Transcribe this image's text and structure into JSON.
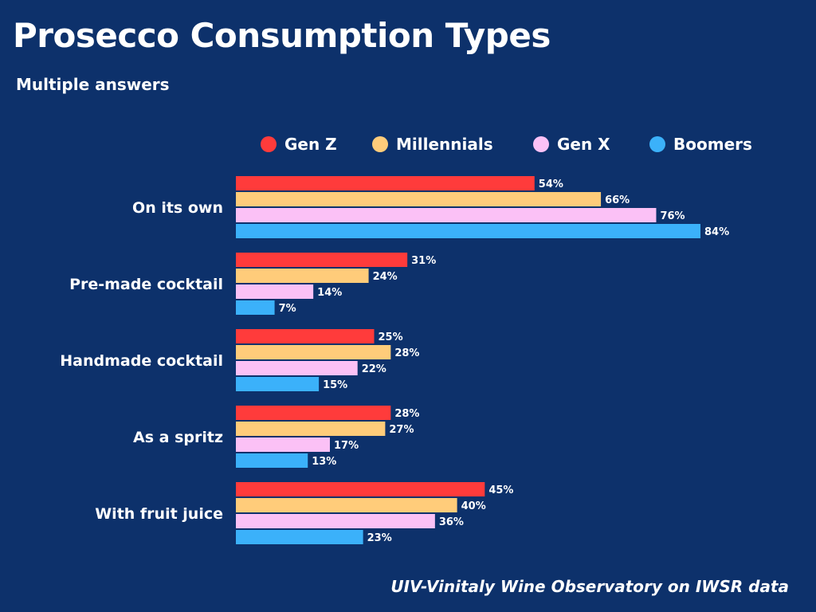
{
  "chart_data": {
    "type": "bar",
    "orientation": "horizontal",
    "title": "Prosecco Consumption Types",
    "subtitle": "Multiple answers",
    "source": "UIV-Vinitaly Wine Observatory on IWSR data",
    "categories": [
      "On its own",
      "Pre-made cocktail",
      "Handmade cocktail",
      "As a spritz",
      "With fruit juice"
    ],
    "series": [
      {
        "name": "Gen Z",
        "color": "#ff3b3b",
        "values": [
          54,
          31,
          25,
          28,
          45
        ]
      },
      {
        "name": "Millennials",
        "color": "#ffcc7a",
        "values": [
          66,
          24,
          28,
          27,
          40
        ]
      },
      {
        "name": "Gen X",
        "color": "#fbc1f6",
        "values": [
          76,
          14,
          22,
          17,
          36
        ]
      },
      {
        "name": "Boomers",
        "color": "#3bb1fa",
        "values": [
          84,
          7,
          15,
          13,
          23
        ]
      }
    ],
    "value_suffix": "%",
    "xlim": [
      0,
      84
    ],
    "legend_position": "top",
    "grid": false
  },
  "colors": {
    "background": "#0d316b",
    "text": "#ffffff"
  }
}
